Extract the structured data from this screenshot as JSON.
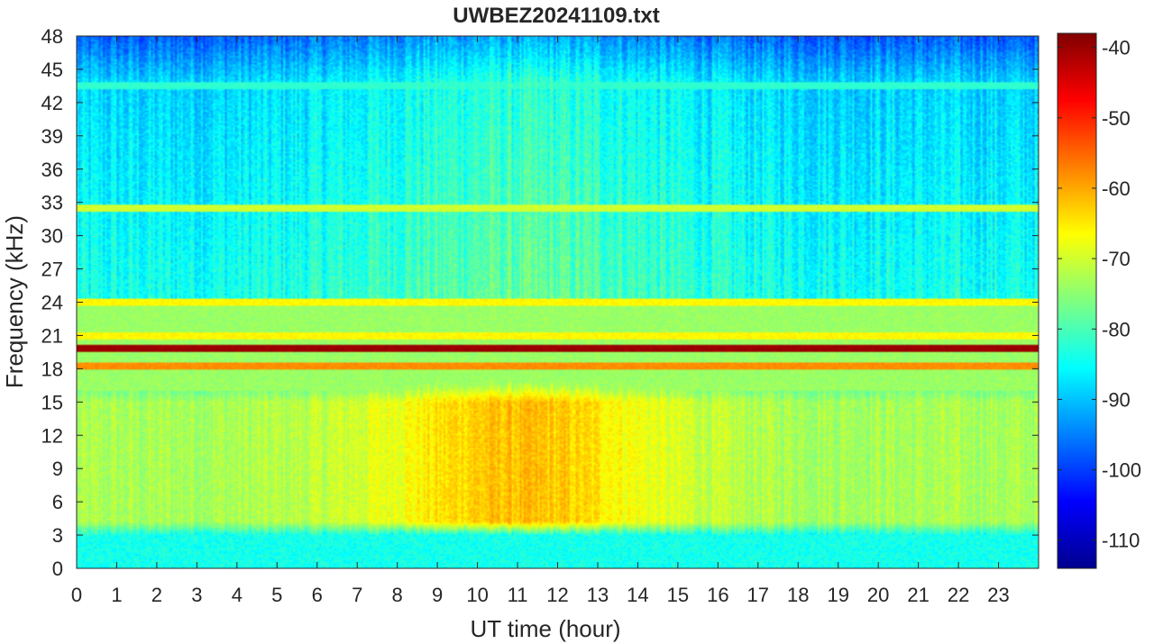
{
  "chart_data": {
    "type": "heatmap",
    "title": "UWBEZ20241109.txt",
    "xlabel": "UT time (hour)",
    "ylabel": "Frequency (kHz)",
    "xlim": [
      0,
      24
    ],
    "ylim": [
      0,
      48
    ],
    "x_ticks": [
      0,
      1,
      2,
      3,
      4,
      5,
      6,
      7,
      8,
      9,
      10,
      11,
      12,
      13,
      14,
      15,
      16,
      17,
      18,
      19,
      20,
      21,
      22,
      23
    ],
    "y_ticks": [
      0,
      3,
      6,
      9,
      12,
      15,
      18,
      21,
      24,
      27,
      30,
      33,
      36,
      39,
      42,
      45,
      48
    ],
    "colorbar": {
      "range": [
        -114,
        -38
      ],
      "ticks": [
        -110,
        -100,
        -90,
        -80,
        -70,
        -60,
        -50,
        -40
      ],
      "colormap": "jet"
    },
    "features": {
      "background_db": -84,
      "upper_band_quiet_db": -100,
      "dense_band": {
        "freq_khz": [
          3,
          16
        ],
        "day_db": -62,
        "night_db": -73
      },
      "narrowband_lines": [
        {
          "freq_khz": 19.8,
          "db": -40
        },
        {
          "freq_khz": 18.2,
          "db": -58
        },
        {
          "freq_khz": 21.0,
          "db": -66
        },
        {
          "freq_khz": 24.0,
          "db": -66
        },
        {
          "freq_khz": 32.5,
          "db": -70
        },
        {
          "freq_khz": 43.5,
          "db": -82
        }
      ]
    }
  }
}
